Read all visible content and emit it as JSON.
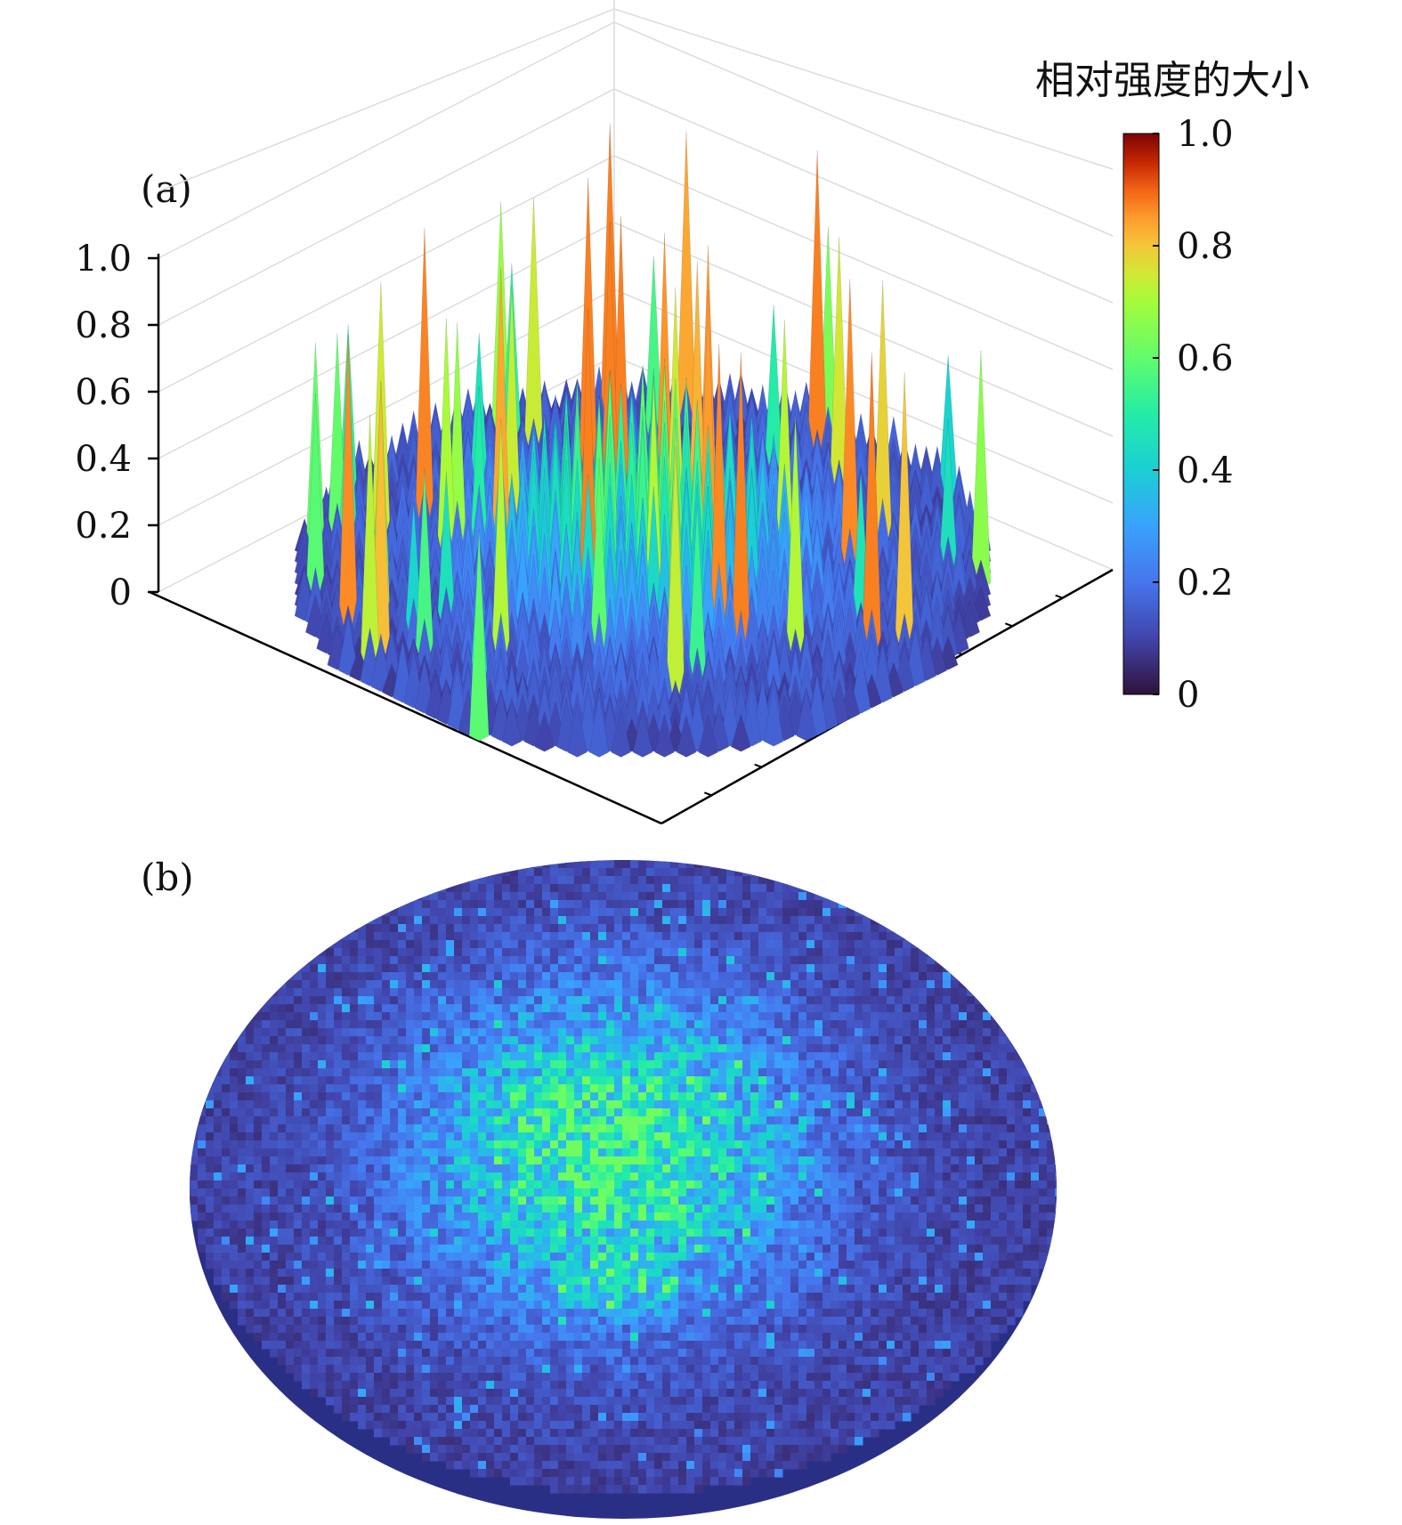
{
  "figure": {
    "panel_a_label": "(a)",
    "panel_b_label": "(b)"
  },
  "colorbar": {
    "title": "相对强度的大小",
    "ticks": [
      "1.0",
      "0.8",
      "0.6",
      "0.4",
      "0.2",
      "0"
    ],
    "colormap": "turbo",
    "range": [
      0,
      1
    ]
  },
  "chart_data": [
    {
      "type": "surface",
      "panel": "(a)",
      "zlabel": "",
      "zticks": [
        "1.0",
        "0.8",
        "0.6",
        "0.4",
        "0.2",
        "0"
      ],
      "zlim": [
        0,
        1
      ],
      "grid": true,
      "shape": "circular aperture",
      "description_values": {
        "center_peak_relative_intensity": 0.62,
        "edge_mean_relative_intensity": 0.15,
        "max_spike_relative_intensity": 0.92
      },
      "colors": {
        "low": "#30123b",
        "mid": "#1ae4b6",
        "high": "#7a0403"
      }
    },
    {
      "type": "heatmap",
      "panel": "(b)",
      "shape": "circular aperture",
      "colorscale_range": [
        0,
        1
      ],
      "center_peak_relative_intensity": 0.6,
      "background_relative_intensity": 0.1
    }
  ]
}
